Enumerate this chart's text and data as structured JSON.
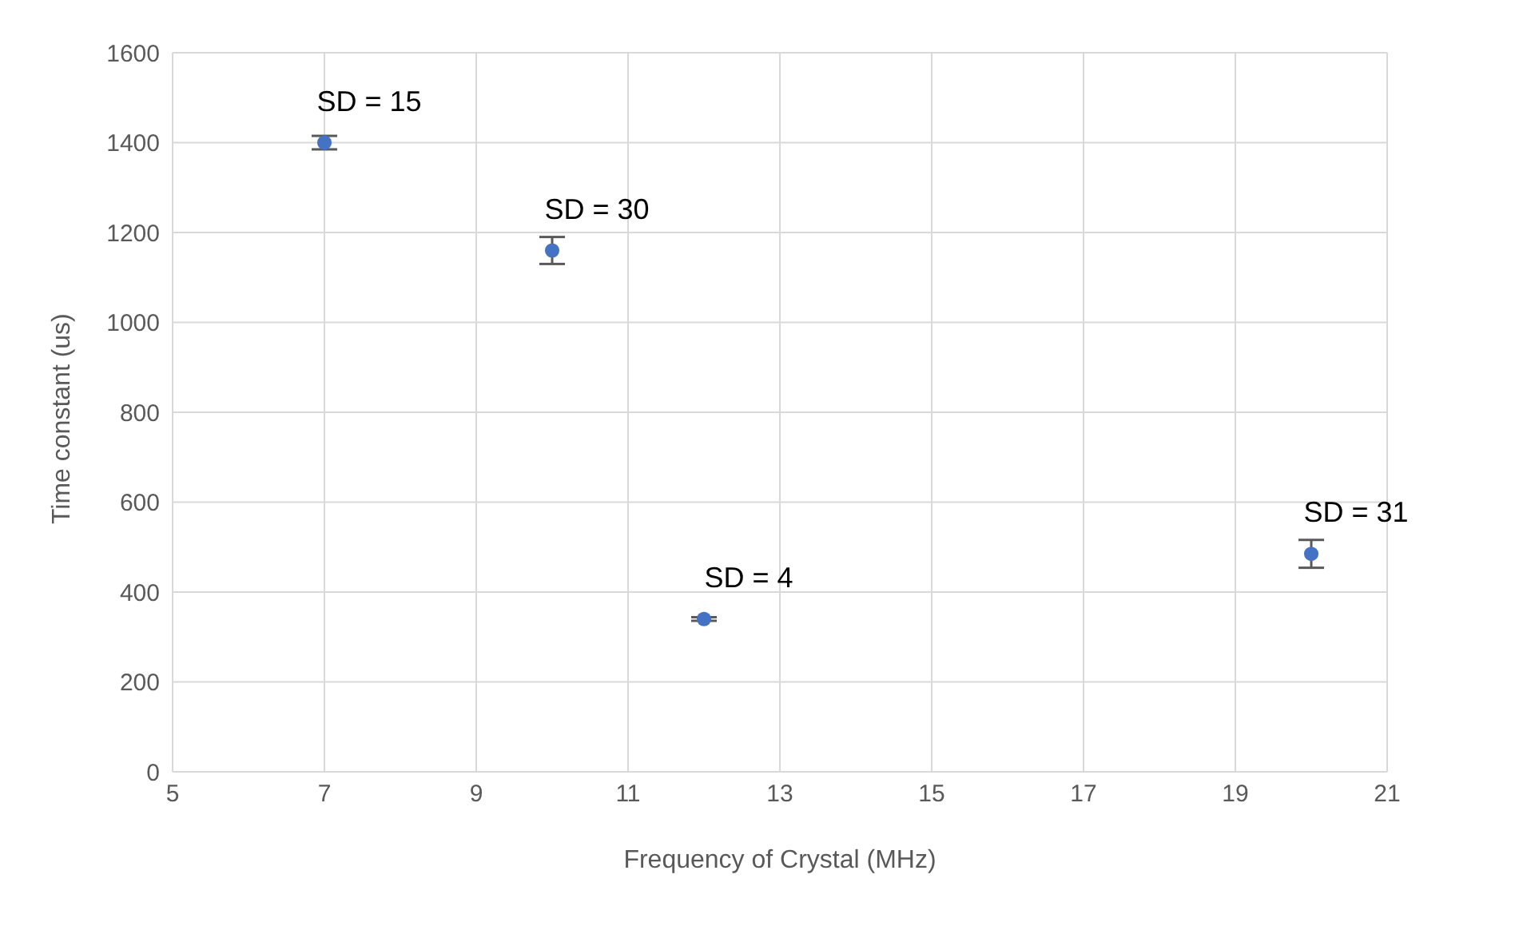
{
  "chart_data": {
    "type": "scatter",
    "xlabel": "Frequency of Crystal (MHz)",
    "ylabel": "Time constant (us)",
    "x": [
      7,
      10,
      12,
      20
    ],
    "values": [
      1400,
      1160,
      340,
      485
    ],
    "errors": [
      15,
      30,
      4,
      31
    ],
    "color": "#4472c4",
    "xlim": [
      5,
      21
    ],
    "xticks": [
      5,
      7,
      9,
      11,
      13,
      15,
      17,
      19,
      21
    ],
    "ylim": [
      0,
      1600
    ],
    "yticks": [
      0,
      200,
      400,
      600,
      800,
      1000,
      1200,
      1400,
      1600
    ],
    "grid": true,
    "marker": "circle",
    "legend": false,
    "annotations": [
      {
        "text": "SD = 15",
        "x": 7,
        "y": 1400
      },
      {
        "text": "SD = 30",
        "x": 10,
        "y": 1160
      },
      {
        "text": "SD = 4",
        "x": 12,
        "y": 340
      },
      {
        "text": "SD = 31",
        "x": 20,
        "y": 485
      }
    ]
  }
}
